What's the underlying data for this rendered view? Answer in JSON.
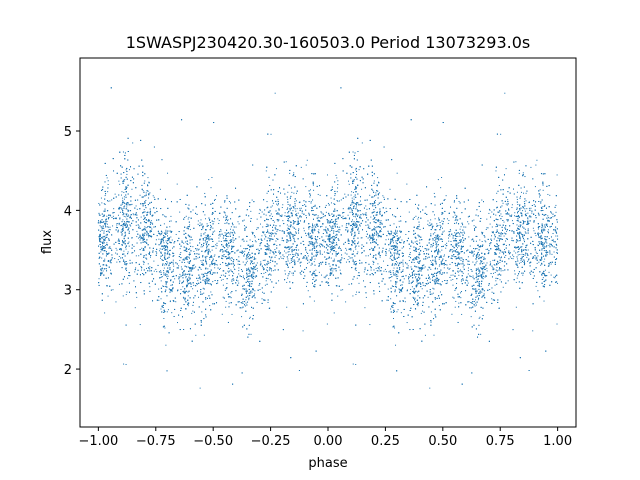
{
  "chart_data": {
    "type": "scatter",
    "title": "1SWASPJ230420.30-160503.0 Period 13073293.0s",
    "xlabel": "phase",
    "ylabel": "flux",
    "xlim": [
      -1.08,
      1.08
    ],
    "ylim": [
      1.27,
      5.92
    ],
    "grid": false,
    "legend": "none",
    "color": "#1f77b4",
    "x_ticks": [
      -1.0,
      -0.75,
      -0.5,
      -0.25,
      0.0,
      0.25,
      0.5,
      0.75,
      1.0
    ],
    "x_tick_labels": [
      "−1.00",
      "−0.75",
      "−0.50",
      "−0.25",
      "0.00",
      "0.25",
      "0.50",
      "0.75",
      "1.00"
    ],
    "y_ticks": [
      2,
      3,
      4,
      5
    ],
    "y_tick_labels": [
      "2",
      "3",
      "4",
      "5"
    ],
    "profile": {
      "phase": [
        0.0,
        0.05,
        0.1,
        0.15,
        0.2,
        0.25,
        0.3,
        0.35,
        0.4,
        0.45,
        0.5,
        0.55,
        0.6,
        0.65,
        0.7,
        0.75,
        0.8,
        0.85,
        0.9,
        0.95,
        1.0
      ],
      "median_flux": [
        3.6,
        3.7,
        3.8,
        3.85,
        3.8,
        3.6,
        3.3,
        3.25,
        3.3,
        3.4,
        3.5,
        3.55,
        3.35,
        3.2,
        3.45,
        3.6,
        3.7,
        3.7,
        3.7,
        3.65,
        3.6
      ],
      "spread": [
        0.3,
        0.35,
        0.4,
        0.45,
        0.4,
        0.35,
        0.35,
        0.35,
        0.35,
        0.35,
        0.35,
        0.35,
        0.35,
        0.35,
        0.35,
        0.35,
        0.35,
        0.35,
        0.35,
        0.35,
        0.3
      ]
    },
    "outlier_flux_range": [
      1.5,
      5.7
    ]
  }
}
